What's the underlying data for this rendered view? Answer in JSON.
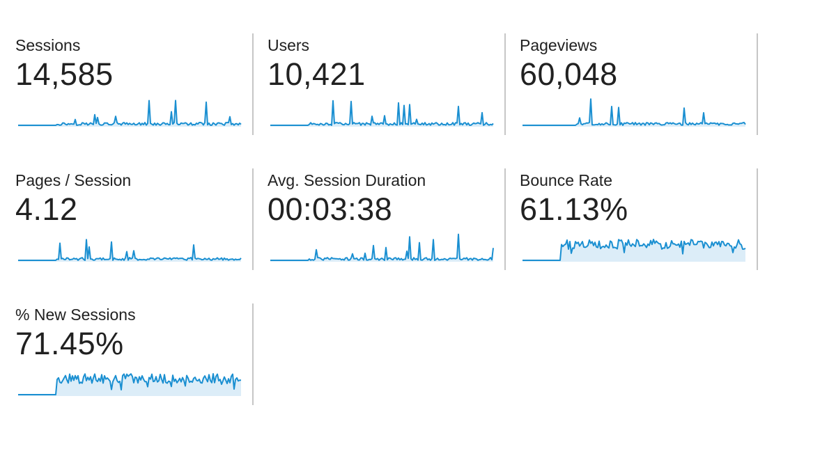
{
  "accent_color": "#1a8fd1",
  "fill_color": "#dcedf8",
  "metrics": [
    {
      "label": "Sessions",
      "value": "14,585",
      "trend": "spiky"
    },
    {
      "label": "Users",
      "value": "10,421",
      "trend": "spiky"
    },
    {
      "label": "Pageviews",
      "value": "60,048",
      "trend": "spiky"
    },
    {
      "label": "Pages / Session",
      "value": "4.12",
      "trend": "spiky"
    },
    {
      "label": "Avg. Session Duration",
      "value": "00:03:38",
      "trend": "spiky"
    },
    {
      "label": "Bounce Rate",
      "value": "61.13%",
      "trend": "plateau"
    },
    {
      "label": "% New Sessions",
      "value": "71.45%",
      "trend": "plateau"
    }
  ]
}
